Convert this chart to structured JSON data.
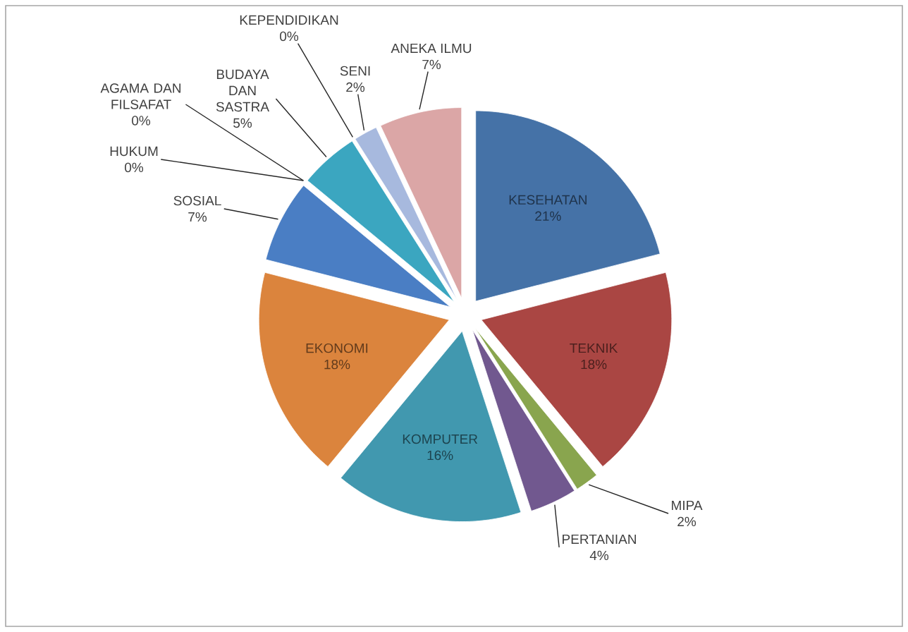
{
  "chart_data": {
    "type": "pie",
    "categories": [
      "KESEHATAN",
      "TEKNIK",
      "MIPA",
      "PERTANIAN",
      "KOMPUTER",
      "EKONOMI",
      "SOSIAL",
      "HUKUM",
      "AGAMA DAN FILSAFAT",
      "BUDAYA DAN SASTRA",
      "KEPENDIDIKAN",
      "SENI",
      "ANEKA ILMU"
    ],
    "values": [
      21,
      18,
      2,
      4,
      16,
      18,
      7,
      0,
      0,
      5,
      0,
      2,
      7
    ],
    "value_labels": [
      "21%",
      "18%",
      "2%",
      "4%",
      "16%",
      "18%",
      "7%",
      "0%",
      "0%",
      "5%",
      "0%",
      "2%",
      "7%"
    ],
    "colors": [
      "#4572a7",
      "#aa4643",
      "#89a54e",
      "#71588f",
      "#4198af",
      "#db843d",
      "#4a7ec4",
      "#b0504d",
      "#7d9a46",
      "#3ba6c0",
      "#e8812f",
      "#a7b9de",
      "#dba6a6"
    ]
  }
}
